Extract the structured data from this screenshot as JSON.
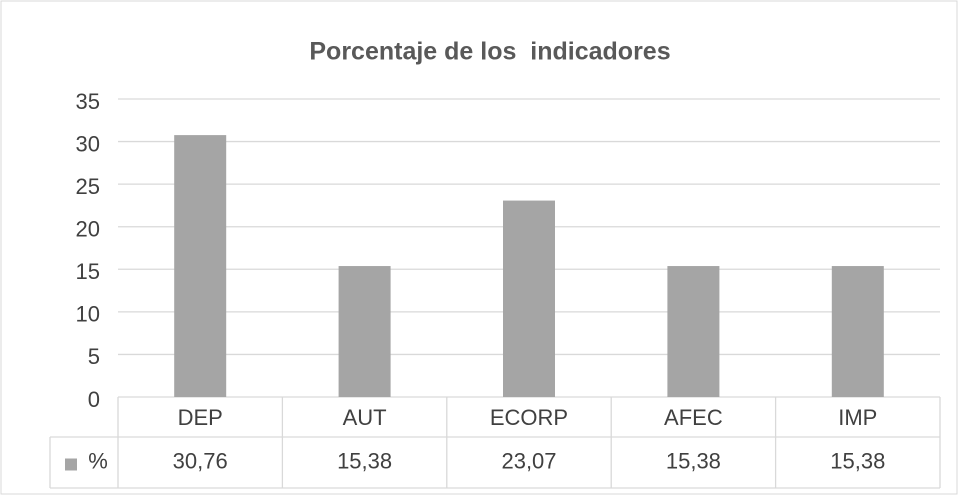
{
  "chart_data": {
    "type": "bar",
    "title": "Porcentaje de los  indicadores",
    "categories": [
      "DEP",
      "AUT",
      "ECORP",
      "AFEC",
      "IMP"
    ],
    "series": [
      {
        "name": "%",
        "color": "#a5a5a5",
        "values": [
          30.76,
          15.38,
          23.07,
          15.38,
          15.38
        ],
        "value_labels": [
          "30,76",
          "15,38",
          "23,07",
          "15,38",
          "15,38"
        ]
      }
    ],
    "ylim": [
      0,
      35
    ],
    "yticks": [
      0,
      5,
      10,
      15,
      20,
      25,
      30,
      35
    ],
    "grid": true,
    "data_table": true
  }
}
